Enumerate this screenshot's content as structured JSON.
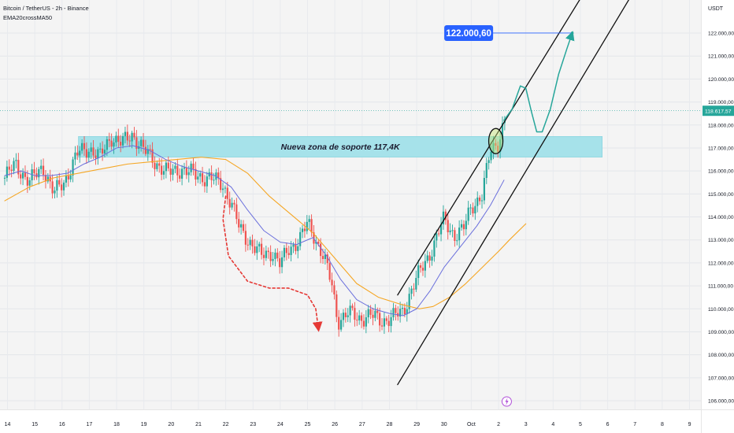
{
  "header": {
    "title": "Bitcoin / TetherUS - 2h - Binance",
    "indicator": "EMA20crossMA50",
    "currency": "USDT"
  },
  "colors": {
    "up": "#26a69a",
    "down": "#ef5350",
    "ema_line": "#6a6fdc",
    "ma_line": "#f5a623",
    "zone_fill": "#a6e2ea",
    "channel": "#111111",
    "projection": "#26a69a",
    "price_tag": "#2962ff",
    "dotted_arrow": "#e53935"
  },
  "chart_data": {
    "type": "candlestick",
    "ylim": [
      105800,
      122500
    ],
    "y_ticks": [
      "122.000,00",
      "121.000,00",
      "120.000,00",
      "119.000,00",
      "118.000,00",
      "117.000,00",
      "116.000,00",
      "115.000,00",
      "114.000,00",
      "113.000,00",
      "112.000,00",
      "111.000,00",
      "110.000,00",
      "109.000,00",
      "108.000,00",
      "107.000,00",
      "106.000,00"
    ],
    "x_ticks": [
      "14",
      "15",
      "16",
      "17",
      "18",
      "19",
      "20",
      "21",
      "22",
      "23",
      "24",
      "25",
      "26",
      "27",
      "28",
      "29",
      "30",
      "Oct",
      "2",
      "3",
      "4",
      "5",
      "6",
      "7",
      "8",
      "9"
    ],
    "x_tick_days": [
      14,
      15,
      16,
      17,
      18,
      19,
      20,
      21,
      22,
      23,
      24,
      25,
      26,
      27,
      28,
      29,
      30,
      31,
      32,
      33,
      34,
      35,
      36,
      37,
      38,
      39
    ],
    "current_price": 118617.57,
    "current_price_label": "118.617,57",
    "target_price": 122000.6,
    "target_label": "122.000,60",
    "price_path": [
      [
        13.9,
        115700
      ],
      [
        14.3,
        116300
      ],
      [
        14.8,
        115500
      ],
      [
        15.3,
        116200
      ],
      [
        15.7,
        115000
      ],
      [
        16.1,
        115600
      ],
      [
        16.6,
        116800
      ],
      [
        17.0,
        117000
      ],
      [
        17.4,
        116600
      ],
      [
        17.8,
        117500
      ],
      [
        18.2,
        117200
      ],
      [
        18.6,
        117600
      ],
      [
        19.0,
        116900
      ],
      [
        19.4,
        116400
      ],
      [
        19.9,
        115900
      ],
      [
        20.4,
        116100
      ],
      [
        20.9,
        115800
      ],
      [
        21.4,
        115700
      ],
      [
        21.9,
        115400
      ],
      [
        22.2,
        114600
      ],
      [
        22.5,
        113500
      ],
      [
        22.9,
        112900
      ],
      [
        23.3,
        112300
      ],
      [
        23.7,
        112500
      ],
      [
        24.0,
        111900
      ],
      [
        24.3,
        112600
      ],
      [
        24.7,
        113000
      ],
      [
        25.0,
        113700
      ],
      [
        25.2,
        113300
      ],
      [
        25.6,
        112200
      ],
      [
        25.9,
        111000
      ],
      [
        26.1,
        109500
      ],
      [
        26.5,
        109800
      ],
      [
        26.9,
        109600
      ],
      [
        27.3,
        109700
      ],
      [
        27.7,
        109500
      ],
      [
        28.1,
        109600
      ],
      [
        28.5,
        109900
      ],
      [
        28.8,
        110800
      ],
      [
        29.2,
        111800
      ],
      [
        29.6,
        112700
      ],
      [
        30.0,
        113900
      ],
      [
        30.4,
        113200
      ],
      [
        30.7,
        113400
      ],
      [
        31.0,
        114500
      ],
      [
        31.4,
        114900
      ],
      [
        31.7,
        116900
      ],
      [
        32.0,
        117300
      ],
      [
        32.2,
        118100
      ],
      [
        32.3,
        118600
      ]
    ],
    "ema20": [
      [
        13.9,
        115800
      ],
      [
        14.5,
        116000
      ],
      [
        15.0,
        115800
      ],
      [
        15.6,
        115800
      ],
      [
        16.2,
        115900
      ],
      [
        16.8,
        116300
      ],
      [
        17.4,
        116600
      ],
      [
        18.0,
        117000
      ],
      [
        18.6,
        117100
      ],
      [
        19.2,
        116900
      ],
      [
        19.8,
        116500
      ],
      [
        20.4,
        116200
      ],
      [
        21.0,
        116000
      ],
      [
        21.6,
        115800
      ],
      [
        22.2,
        115300
      ],
      [
        22.8,
        114300
      ],
      [
        23.4,
        113400
      ],
      [
        24.0,
        112900
      ],
      [
        24.6,
        112800
      ],
      [
        25.2,
        113100
      ],
      [
        25.7,
        112300
      ],
      [
        26.2,
        111300
      ],
      [
        26.8,
        110400
      ],
      [
        27.4,
        110000
      ],
      [
        28.0,
        109800
      ],
      [
        28.5,
        109700
      ],
      [
        29.0,
        110000
      ],
      [
        29.5,
        110800
      ],
      [
        30.0,
        111800
      ],
      [
        30.6,
        112700
      ],
      [
        31.2,
        113600
      ],
      [
        31.7,
        114500
      ],
      [
        32.2,
        115600
      ]
    ],
    "ma50": [
      [
        13.9,
        114700
      ],
      [
        14.8,
        115300
      ],
      [
        15.7,
        115700
      ],
      [
        16.6,
        115900
      ],
      [
        17.5,
        116100
      ],
      [
        18.4,
        116300
      ],
      [
        19.3,
        116400
      ],
      [
        20.2,
        116500
      ],
      [
        21.1,
        116600
      ],
      [
        22.0,
        116500
      ],
      [
        22.8,
        115900
      ],
      [
        23.6,
        114900
      ],
      [
        24.4,
        114100
      ],
      [
        25.2,
        113300
      ],
      [
        26.0,
        112200
      ],
      [
        26.8,
        111100
      ],
      [
        27.6,
        110500
      ],
      [
        28.4,
        110200
      ],
      [
        29.1,
        110000
      ],
      [
        29.6,
        110100
      ],
      [
        30.2,
        110500
      ],
      [
        30.8,
        111100
      ],
      [
        31.4,
        111800
      ],
      [
        32.0,
        112500
      ],
      [
        32.4,
        113000
      ],
      [
        33.0,
        113700
      ]
    ],
    "support_zone": {
      "x0": 16.6,
      "x1": 35.8,
      "y0": 116600,
      "y1": 117500,
      "label": "Nueva zona de soporte 117,4K"
    },
    "channel_upper": [
      [
        28.3,
        110600
      ],
      [
        35.0,
        123500
      ]
    ],
    "channel_lower": [
      [
        28.3,
        106700
      ],
      [
        36.8,
        123500
      ]
    ],
    "projection_path": [
      [
        32.2,
        118200
      ],
      [
        32.5,
        118700
      ],
      [
        32.8,
        119700
      ],
      [
        33.0,
        119600
      ],
      [
        33.2,
        118600
      ],
      [
        33.4,
        117700
      ],
      [
        33.6,
        117700
      ],
      [
        33.9,
        118700
      ],
      [
        34.2,
        120200
      ],
      [
        34.5,
        121300
      ],
      [
        34.7,
        122000
      ]
    ],
    "target_line": [
      [
        31.7,
        122000.6
      ],
      [
        34.7,
        122000.6
      ]
    ],
    "dotted_path": [
      [
        22.0,
        114900
      ],
      [
        21.9,
        113900
      ],
      [
        22.1,
        112300
      ],
      [
        22.8,
        111200
      ],
      [
        23.6,
        110900
      ],
      [
        24.3,
        110900
      ],
      [
        25.0,
        110600
      ],
      [
        25.3,
        110000
      ],
      [
        25.4,
        109100
      ]
    ],
    "highlight": {
      "x": 31.9,
      "y": 117300
    }
  }
}
